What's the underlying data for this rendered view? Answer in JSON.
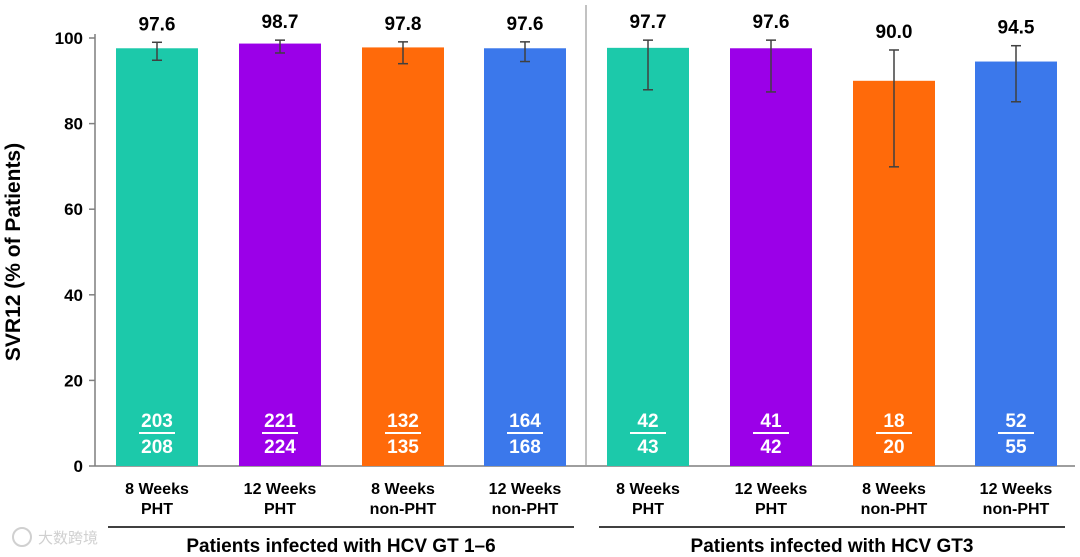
{
  "chart_data": {
    "type": "bar",
    "ylabel": "SVR12 (% of Patients)",
    "xlabel": "",
    "ylim": [
      0,
      100
    ],
    "yticks": [
      0,
      20,
      40,
      60,
      80,
      100
    ],
    "grid": false,
    "bars": [
      {
        "line1": "8 Weeks",
        "line2": "PHT",
        "value": 97.6,
        "value_label": "97.6",
        "err_low": 94.8,
        "err_high": 99.0,
        "num": "203",
        "den": "208",
        "color": "#1cc9aa"
      },
      {
        "line1": "12 Weeks",
        "line2": "PHT",
        "value": 98.7,
        "value_label": "98.7",
        "err_low": 96.5,
        "err_high": 99.5,
        "num": "221",
        "den": "224",
        "color": "#9b00e8"
      },
      {
        "line1": "8 Weeks",
        "line2": "non-PHT",
        "value": 97.8,
        "value_label": "97.8",
        "err_low": 94.0,
        "err_high": 99.1,
        "num": "132",
        "den": "135",
        "color": "#ff6a0a"
      },
      {
        "line1": "12 Weeks",
        "line2": "non-PHT",
        "value": 97.6,
        "value_label": "97.6",
        "err_low": 94.5,
        "err_high": 99.1,
        "num": "164",
        "den": "168",
        "color": "#3b78eb"
      },
      {
        "line1": "8 Weeks",
        "line2": "PHT",
        "value": 97.7,
        "value_label": "97.7",
        "err_low": 87.9,
        "err_high": 99.5,
        "num": "42",
        "den": "43",
        "color": "#1cc9aa"
      },
      {
        "line1": "12 Weeks",
        "line2": "PHT",
        "value": 97.6,
        "value_label": "97.6",
        "err_low": 87.4,
        "err_high": 99.5,
        "num": "41",
        "den": "42",
        "color": "#9b00e8"
      },
      {
        "line1": "8 Weeks",
        "line2": "non-PHT",
        "value": 90.0,
        "value_label": "90.0",
        "err_low": 69.9,
        "err_high": 97.2,
        "num": "18",
        "den": "20",
        "color": "#ff6a0a"
      },
      {
        "line1": "12 Weeks",
        "line2": "non-PHT",
        "value": 94.5,
        "value_label": "94.5",
        "err_low": 85.1,
        "err_high": 98.2,
        "num": "52",
        "den": "55",
        "color": "#3b78eb"
      }
    ],
    "groups": [
      {
        "label": "Patients infected with HCV GT 1–6",
        "start": 0,
        "end": 3
      },
      {
        "label": "Patients infected with HCV GT3",
        "start": 4,
        "end": 7
      }
    ]
  },
  "watermark": "大数跨境"
}
